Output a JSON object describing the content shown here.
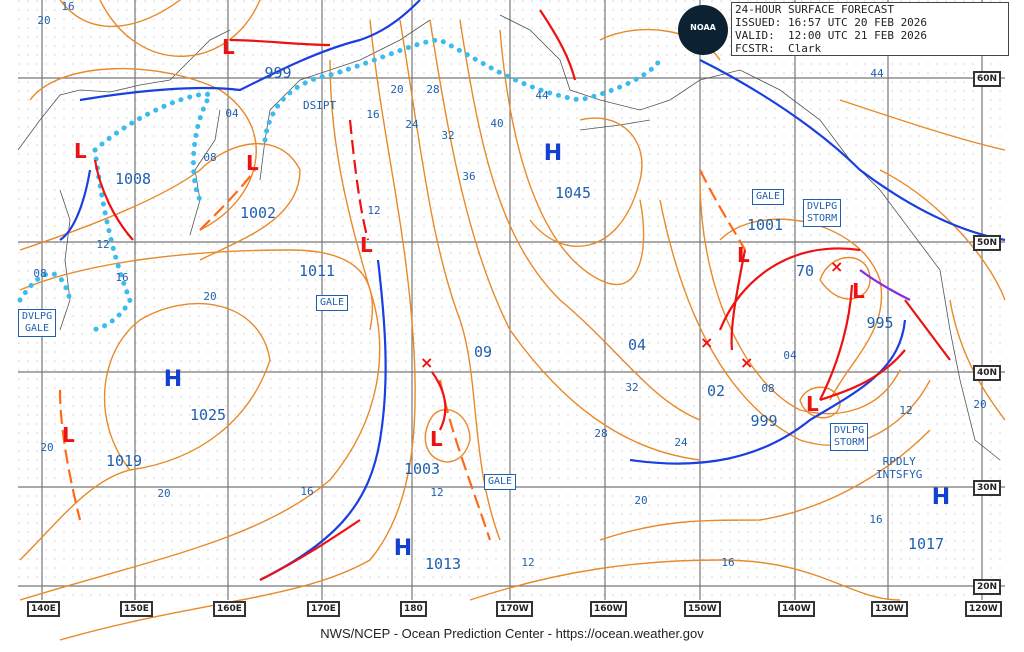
{
  "header": {
    "title": "24-HOUR SURFACE FORECAST",
    "issued": "ISSUED: 16:57 UTC 20 FEB 2026",
    "valid": "VALID:  12:00 UTC 21 FEB 2026",
    "forecaster": "FCSTR:  Clark",
    "logo_text": "NOAA"
  },
  "footer": "NWS/NCEP - Ocean Prediction Center - https://ocean.weather.gov",
  "colors": {
    "isobar": "#e8892a",
    "cold_front": "#1a3fe0",
    "warm_front": "#ee1111",
    "occluded": "#8a2be2",
    "ice_edge": "#3bbcec",
    "label": "#1f5fb0"
  },
  "longitude_labels": [
    "140E",
    "150E",
    "160E",
    "170E",
    "180",
    "170W",
    "160W",
    "150W",
    "140W",
    "130W",
    "120W"
  ],
  "latitude_labels": [
    "60N",
    "50N",
    "40N",
    "30N",
    "20N"
  ],
  "pressure_centers": [
    "999",
    "1008",
    "1002",
    "1011",
    "1025",
    "1019",
    "1003",
    "1013",
    "1045",
    "1001",
    "70",
    "995",
    "04",
    "09",
    "02",
    "999",
    "1017"
  ],
  "isobar_labels": [
    "20",
    "16",
    "04",
    "08",
    "12",
    "16",
    "08",
    "20",
    "20",
    "20",
    "16",
    "12",
    "12",
    "16",
    "20",
    "24",
    "28",
    "32",
    "36",
    "40",
    "44",
    "32",
    "28",
    "24",
    "20",
    "16",
    "12",
    "04",
    "08",
    "12",
    "20",
    "16",
    "44"
  ],
  "high_marker": "H",
  "warnings": {
    "dsipt": "DSIPT",
    "gale_1": "GALE",
    "dvlpg_gale": [
      "DVLPG",
      "GALE"
    ],
    "gale_2": "GALE",
    "gale_3": "GALE",
    "dvlpg_storm_1": [
      "DVLPG",
      "STORM"
    ],
    "dvlpg_storm_2": [
      "DVLPG",
      "STORM"
    ],
    "rpdly_intsfyg": [
      "RPDLY",
      "INTSFYG"
    ]
  }
}
